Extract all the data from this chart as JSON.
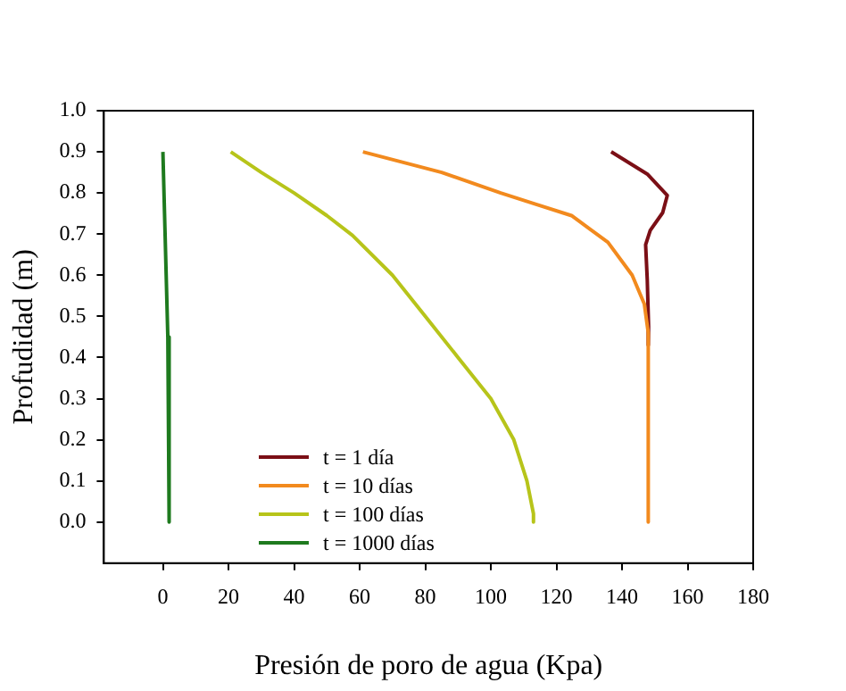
{
  "chart_data": {
    "type": "line",
    "xlabel": "Presión de poro de agua (Kpa)",
    "ylabel": "Profudidad (m)",
    "xlim": [
      -18,
      180
    ],
    "xticks": [
      0,
      20,
      40,
      60,
      80,
      100,
      120,
      140,
      160,
      180
    ],
    "ylim": [
      -0.1,
      1.0
    ],
    "yticks": [
      {
        "value": 0,
        "label": "0.0"
      },
      0.1,
      0.2,
      0.3,
      0.4,
      0.5,
      0.6,
      0.7,
      0.8,
      0.9,
      {
        "value": 1,
        "label": "1.0"
      }
    ],
    "grid": false,
    "legend": "bottom left",
    "marker": "none",
    "line_style": "solid",
    "series": [
      {
        "name": "t = 1 día",
        "color": "#7b0f16",
        "x": [
          136.7,
          147.7,
          153.8,
          152.4,
          148.6,
          147.2,
          147.7,
          148.1,
          148
        ],
        "values": [
          0.9,
          0.846,
          0.794,
          0.752,
          0.709,
          0.674,
          0.589,
          0.475,
          0.43
        ]
      },
      {
        "name": "t = 10 días",
        "color": "#f28a1e",
        "x": [
          61,
          85,
          103,
          113.6,
          124.6,
          135.7,
          143.1,
          146.8,
          148,
          148
        ],
        "values": [
          0.9,
          0.85,
          0.8,
          0.773,
          0.745,
          0.68,
          0.6,
          0.53,
          0.46,
          0.0
        ]
      },
      {
        "name": "t = 100 días",
        "color": "#b7c41a",
        "x": [
          20.7,
          30,
          40,
          50,
          57.8,
          70,
          80,
          90,
          100,
          107,
          111,
          113,
          113
        ],
        "values": [
          0.9,
          0.85,
          0.8,
          0.745,
          0.697,
          0.6,
          0.5,
          0.4,
          0.3,
          0.2,
          0.1,
          0.02,
          0.0
        ]
      },
      {
        "name": "t = 1000 días",
        "color": "#1e7a1e",
        "x": [
          0,
          0.5,
          1,
          1.5,
          1.8,
          2
        ],
        "values": [
          0.9,
          0.75,
          0.6,
          0.45,
          0.2,
          0.0
        ]
      }
    ]
  }
}
